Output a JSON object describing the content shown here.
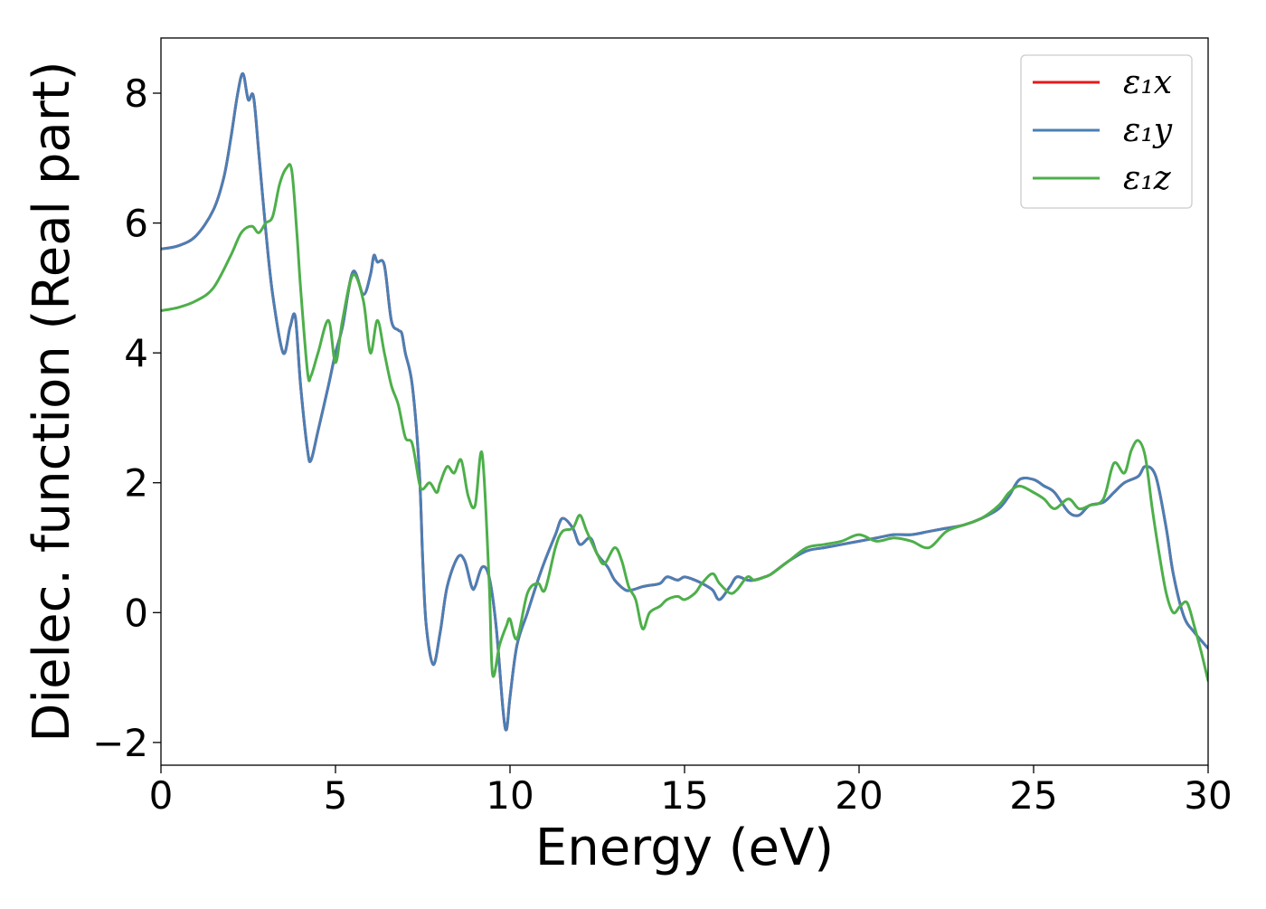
{
  "chart_data": {
    "type": "line",
    "title": "",
    "xlabel": "Energy (eV)",
    "ylabel": "Dielec. function (Real part)",
    "xlim": [
      0,
      30
    ],
    "ylim": [
      -2.35,
      8.85
    ],
    "xticks": [
      0,
      5,
      10,
      15,
      20,
      25,
      30
    ],
    "yticks": [
      -2,
      0,
      2,
      4,
      6,
      8
    ],
    "xtick_labels": [
      "0",
      "5",
      "10",
      "15",
      "20",
      "25",
      "30"
    ],
    "ytick_labels": [
      "−2",
      "0",
      "2",
      "4",
      "6",
      "8"
    ],
    "grid": false,
    "legend_position": "top-right",
    "series": [
      {
        "name": "ε₁x",
        "color": "#e41a1c",
        "x": [
          0,
          0.5,
          1.0,
          1.5,
          1.8,
          2.0,
          2.2,
          2.35,
          2.5,
          2.65,
          2.8,
          3.0,
          3.2,
          3.5,
          3.7,
          3.85,
          4.0,
          4.2,
          4.3,
          4.5,
          4.8,
          5.0,
          5.2,
          5.5,
          5.8,
          6.0,
          6.1,
          6.2,
          6.4,
          6.6,
          6.8,
          6.9,
          7.0,
          7.2,
          7.4,
          7.5,
          7.6,
          7.8,
          8.0,
          8.2,
          8.5,
          8.7,
          8.9,
          9.0,
          9.2,
          9.4,
          9.6,
          9.8,
          9.9,
          10.0,
          10.2,
          10.5,
          10.8,
          11.0,
          11.3,
          11.5,
          11.8,
          12.0,
          12.3,
          12.5,
          12.8,
          13.0,
          13.3,
          13.5,
          13.8,
          14.0,
          14.3,
          14.5,
          14.8,
          15.0,
          15.3,
          15.5,
          15.8,
          16.0,
          16.3,
          16.5,
          16.8,
          17.0,
          17.3,
          17.5,
          18.0,
          18.5,
          19.0,
          19.5,
          20.0,
          20.5,
          21.0,
          21.5,
          22.0,
          22.5,
          23.0,
          23.5,
          24.0,
          24.3,
          24.6,
          25.0,
          25.3,
          25.6,
          26.0,
          26.3,
          26.6,
          27.0,
          27.3,
          27.6,
          28.0,
          28.2,
          28.5,
          28.8,
          29.0,
          29.3,
          29.6,
          30.0
        ],
        "y": [
          5.6,
          5.65,
          5.8,
          6.2,
          6.7,
          7.3,
          8.0,
          8.3,
          7.9,
          7.95,
          7.1,
          5.9,
          4.9,
          4.0,
          4.4,
          4.55,
          3.5,
          2.5,
          2.35,
          2.8,
          3.5,
          4.0,
          4.4,
          5.25,
          4.9,
          5.2,
          5.5,
          5.4,
          5.35,
          4.5,
          4.35,
          4.3,
          4.0,
          3.5,
          2.2,
          0.8,
          -0.2,
          -0.8,
          -0.3,
          0.4,
          0.85,
          0.8,
          0.4,
          0.4,
          0.7,
          0.55,
          -0.2,
          -1.5,
          -1.8,
          -1.3,
          -0.5,
          0.0,
          0.5,
          0.8,
          1.2,
          1.45,
          1.3,
          1.05,
          1.15,
          0.9,
          0.7,
          0.5,
          0.35,
          0.35,
          0.4,
          0.42,
          0.45,
          0.55,
          0.5,
          0.55,
          0.5,
          0.45,
          0.35,
          0.2,
          0.4,
          0.55,
          0.5,
          0.5,
          0.55,
          0.6,
          0.8,
          0.95,
          1.0,
          1.05,
          1.1,
          1.15,
          1.2,
          1.2,
          1.25,
          1.3,
          1.35,
          1.45,
          1.6,
          1.8,
          2.05,
          2.05,
          1.95,
          1.85,
          1.55,
          1.5,
          1.65,
          1.7,
          1.85,
          2.0,
          2.1,
          2.25,
          2.1,
          1.3,
          0.6,
          -0.05,
          -0.3,
          -0.55
        ]
      },
      {
        "name": "ε₁y",
        "color": "#4a7fb5",
        "x": [
          0,
          0.5,
          1.0,
          1.5,
          1.8,
          2.0,
          2.2,
          2.35,
          2.5,
          2.65,
          2.8,
          3.0,
          3.2,
          3.5,
          3.7,
          3.85,
          4.0,
          4.2,
          4.3,
          4.5,
          4.8,
          5.0,
          5.2,
          5.5,
          5.8,
          6.0,
          6.1,
          6.2,
          6.4,
          6.6,
          6.8,
          6.9,
          7.0,
          7.2,
          7.4,
          7.5,
          7.6,
          7.8,
          8.0,
          8.2,
          8.5,
          8.7,
          8.9,
          9.0,
          9.2,
          9.4,
          9.6,
          9.8,
          9.9,
          10.0,
          10.2,
          10.5,
          10.8,
          11.0,
          11.3,
          11.5,
          11.8,
          12.0,
          12.3,
          12.5,
          12.8,
          13.0,
          13.3,
          13.5,
          13.8,
          14.0,
          14.3,
          14.5,
          14.8,
          15.0,
          15.3,
          15.5,
          15.8,
          16.0,
          16.3,
          16.5,
          16.8,
          17.0,
          17.3,
          17.5,
          18.0,
          18.5,
          19.0,
          19.5,
          20.0,
          20.5,
          21.0,
          21.5,
          22.0,
          22.5,
          23.0,
          23.5,
          24.0,
          24.3,
          24.6,
          25.0,
          25.3,
          25.6,
          26.0,
          26.3,
          26.6,
          27.0,
          27.3,
          27.6,
          28.0,
          28.2,
          28.5,
          28.8,
          29.0,
          29.3,
          29.6,
          30.0
        ],
        "y": [
          5.6,
          5.65,
          5.8,
          6.2,
          6.7,
          7.3,
          8.0,
          8.3,
          7.9,
          7.95,
          7.1,
          5.9,
          4.9,
          4.0,
          4.4,
          4.55,
          3.5,
          2.5,
          2.35,
          2.8,
          3.5,
          4.0,
          4.4,
          5.25,
          4.9,
          5.2,
          5.5,
          5.4,
          5.35,
          4.5,
          4.35,
          4.3,
          4.0,
          3.5,
          2.2,
          0.8,
          -0.2,
          -0.8,
          -0.3,
          0.4,
          0.85,
          0.8,
          0.4,
          0.4,
          0.7,
          0.55,
          -0.2,
          -1.5,
          -1.8,
          -1.3,
          -0.5,
          0.0,
          0.5,
          0.8,
          1.2,
          1.45,
          1.3,
          1.05,
          1.15,
          0.9,
          0.7,
          0.5,
          0.35,
          0.35,
          0.4,
          0.42,
          0.45,
          0.55,
          0.5,
          0.55,
          0.5,
          0.45,
          0.35,
          0.2,
          0.4,
          0.55,
          0.5,
          0.5,
          0.55,
          0.6,
          0.8,
          0.95,
          1.0,
          1.05,
          1.1,
          1.15,
          1.2,
          1.2,
          1.25,
          1.3,
          1.35,
          1.45,
          1.6,
          1.8,
          2.05,
          2.05,
          1.95,
          1.85,
          1.55,
          1.5,
          1.65,
          1.7,
          1.85,
          2.0,
          2.1,
          2.25,
          2.1,
          1.3,
          0.6,
          -0.05,
          -0.3,
          -0.55
        ]
      },
      {
        "name": "ε₁z",
        "color": "#4daf4a",
        "x": [
          0,
          0.5,
          1.0,
          1.5,
          2.0,
          2.3,
          2.6,
          2.8,
          3.0,
          3.2,
          3.4,
          3.6,
          3.75,
          3.9,
          4.0,
          4.2,
          4.3,
          4.5,
          4.8,
          5.0,
          5.2,
          5.5,
          5.8,
          6.0,
          6.2,
          6.4,
          6.6,
          6.8,
          7.0,
          7.2,
          7.4,
          7.5,
          7.7,
          7.9,
          8.0,
          8.2,
          8.4,
          8.6,
          8.8,
          9.0,
          9.2,
          9.4,
          9.5,
          9.7,
          9.9,
          10.0,
          10.2,
          10.5,
          10.8,
          11.0,
          11.3,
          11.5,
          11.8,
          12.0,
          12.2,
          12.5,
          12.7,
          13.0,
          13.2,
          13.4,
          13.6,
          13.8,
          14.0,
          14.3,
          14.5,
          14.8,
          15.0,
          15.3,
          15.5,
          15.8,
          16.0,
          16.3,
          16.5,
          16.8,
          17.0,
          17.3,
          17.5,
          18.0,
          18.5,
          19.0,
          19.5,
          20.0,
          20.5,
          21.0,
          21.5,
          22.0,
          22.5,
          23.0,
          23.5,
          24.0,
          24.3,
          24.6,
          25.0,
          25.3,
          25.6,
          26.0,
          26.3,
          26.6,
          27.0,
          27.3,
          27.6,
          27.8,
          28.0,
          28.2,
          28.4,
          28.6,
          28.8,
          29.0,
          29.2,
          29.4,
          29.6,
          29.8,
          30.0
        ],
        "y": [
          4.65,
          4.7,
          4.8,
          5.0,
          5.5,
          5.85,
          5.95,
          5.85,
          6.0,
          6.1,
          6.6,
          6.85,
          6.8,
          5.8,
          5.0,
          3.7,
          3.65,
          4.0,
          4.5,
          3.85,
          4.5,
          5.2,
          4.8,
          4.0,
          4.5,
          4.0,
          3.5,
          3.2,
          2.7,
          2.6,
          2.0,
          1.9,
          2.0,
          1.85,
          2.0,
          2.25,
          2.15,
          2.35,
          1.8,
          1.65,
          2.45,
          0.5,
          -0.95,
          -0.5,
          -0.2,
          -0.1,
          -0.4,
          0.3,
          0.45,
          0.35,
          1.0,
          1.25,
          1.3,
          1.5,
          1.25,
          0.9,
          0.75,
          1.0,
          0.8,
          0.4,
          0.2,
          -0.25,
          0.0,
          0.1,
          0.2,
          0.25,
          0.2,
          0.3,
          0.45,
          0.6,
          0.45,
          0.3,
          0.35,
          0.55,
          0.5,
          0.55,
          0.6,
          0.8,
          1.0,
          1.05,
          1.1,
          1.2,
          1.1,
          1.15,
          1.1,
          1.0,
          1.25,
          1.35,
          1.45,
          1.65,
          1.85,
          1.95,
          1.85,
          1.75,
          1.6,
          1.75,
          1.6,
          1.65,
          1.75,
          2.3,
          2.15,
          2.5,
          2.65,
          2.4,
          1.6,
          0.9,
          0.3,
          0.0,
          0.1,
          0.15,
          -0.2,
          -0.6,
          -1.05
        ]
      }
    ]
  }
}
